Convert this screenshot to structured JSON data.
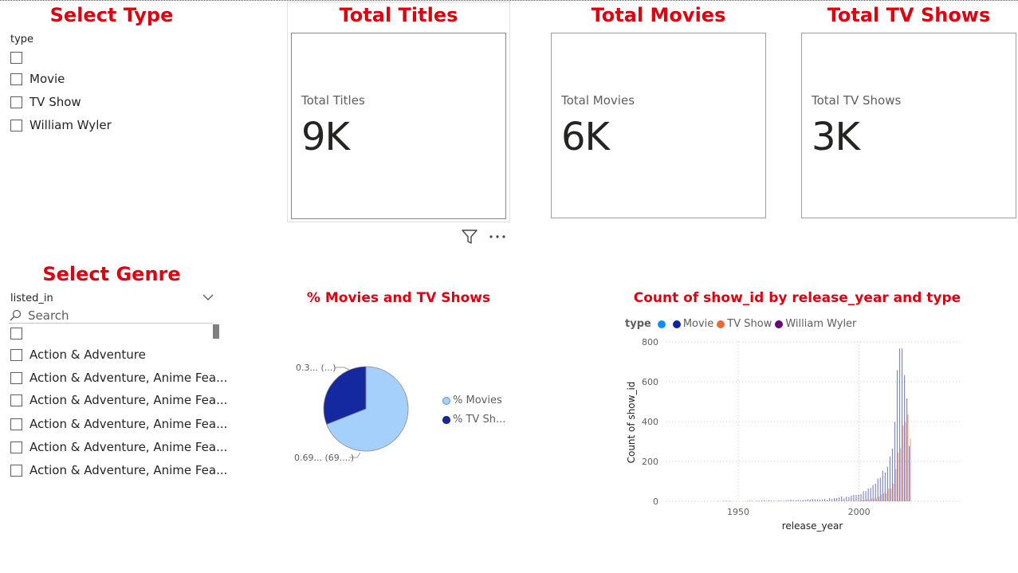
{
  "headings": {
    "select_type": "Select Type",
    "total_titles": "Total Titles",
    "total_movies": "Total Movies",
    "total_tv_shows": "Total TV Shows",
    "select_genre": "Select Genre"
  },
  "type_slicer": {
    "field": "type",
    "items": [
      "",
      "Movie",
      "TV Show",
      "William Wyler"
    ]
  },
  "cards": {
    "titles": {
      "label": "Total Titles",
      "value": "9K"
    },
    "movies": {
      "label": "Total Movies",
      "value": "6K"
    },
    "tv_shows": {
      "label": "Total TV Shows",
      "value": "3K"
    }
  },
  "genre_slicer": {
    "field": "listed_in",
    "search_placeholder": "Search",
    "items": [
      "",
      "Action & Adventure",
      "Action & Adventure, Anime Fea...",
      "Action & Adventure, Anime Fea...",
      "Action & Adventure, Anime Fea...",
      "Action & Adventure, Anime Fea...",
      "Action & Adventure, Anime Fea..."
    ]
  },
  "pie": {
    "title": "% Movies and TV Shows",
    "legend": [
      "% Movies",
      "% TV Sh..."
    ],
    "labels": {
      "small": "0.3... (...)",
      "large": "0.69... (69....)"
    },
    "colors": {
      "movies": "#a6d0fc",
      "tv_shows": "#1428a0"
    },
    "values": [
      0.69,
      0.31
    ]
  },
  "chart_data": {
    "type": "bar",
    "title": "Count of show_id by release_year and type",
    "xlabel": "release_year",
    "ylabel": "Count of show_id",
    "legend_title": "type",
    "legend_position": "top-left",
    "x_ticks": [
      "1950",
      "2000"
    ],
    "y_ticks": [
      "0",
      "200",
      "400",
      "600",
      "800"
    ],
    "xlim": [
      1920,
      2042
    ],
    "ylim": [
      0,
      800
    ],
    "grid": true,
    "series": [
      {
        "name": "",
        "color": "#118dff",
        "values": []
      },
      {
        "name": "Movie",
        "color": "#12239e",
        "x": [
          1942,
          1944,
          1945,
          1946,
          1947,
          1954,
          1955,
          1956,
          1958,
          1959,
          1960,
          1961,
          1962,
          1963,
          1964,
          1965,
          1966,
          1967,
          1968,
          1969,
          1970,
          1971,
          1972,
          1973,
          1974,
          1975,
          1976,
          1977,
          1978,
          1979,
          1980,
          1981,
          1982,
          1983,
          1984,
          1985,
          1986,
          1987,
          1988,
          1989,
          1990,
          1991,
          1992,
          1993,
          1994,
          1995,
          1996,
          1997,
          1998,
          1999,
          2000,
          2001,
          2002,
          2003,
          2004,
          2005,
          2006,
          2007,
          2008,
          2009,
          2010,
          2011,
          2012,
          2013,
          2014,
          2015,
          2016,
          2017,
          2018,
          2019,
          2020,
          2021
        ],
        "values": [
          2,
          2,
          3,
          1,
          1,
          2,
          3,
          2,
          3,
          1,
          4,
          5,
          3,
          6,
          2,
          3,
          2,
          4,
          3,
          2,
          5,
          5,
          8,
          6,
          5,
          7,
          5,
          7,
          7,
          10,
          8,
          10,
          10,
          10,
          8,
          9,
          11,
          8,
          15,
          10,
          17,
          16,
          20,
          24,
          14,
          23,
          21,
          28,
          32,
          32,
          33,
          36,
          51,
          51,
          64,
          67,
          82,
          88,
          114,
          118,
          154,
          145,
          173,
          225,
          264,
          398,
          658,
          767,
          767,
          633,
          517,
          277
        ]
      },
      {
        "name": "TV Show",
        "color": "#e66c37",
        "x": [
          1990,
          1993,
          1995,
          1998,
          2000,
          2001,
          2002,
          2003,
          2004,
          2005,
          2006,
          2007,
          2008,
          2009,
          2010,
          2011,
          2012,
          2013,
          2014,
          2015,
          2016,
          2017,
          2018,
          2019,
          2020,
          2021
        ],
        "values": [
          3,
          4,
          2,
          4,
          4,
          5,
          7,
          10,
          9,
          13,
          14,
          14,
          23,
          34,
          40,
          40,
          64,
          63,
          88,
          162,
          244,
          265,
          380,
          397,
          436,
          315
        ]
      },
      {
        "name": "William Wyler",
        "color": "#6b007b",
        "values": []
      }
    ]
  }
}
